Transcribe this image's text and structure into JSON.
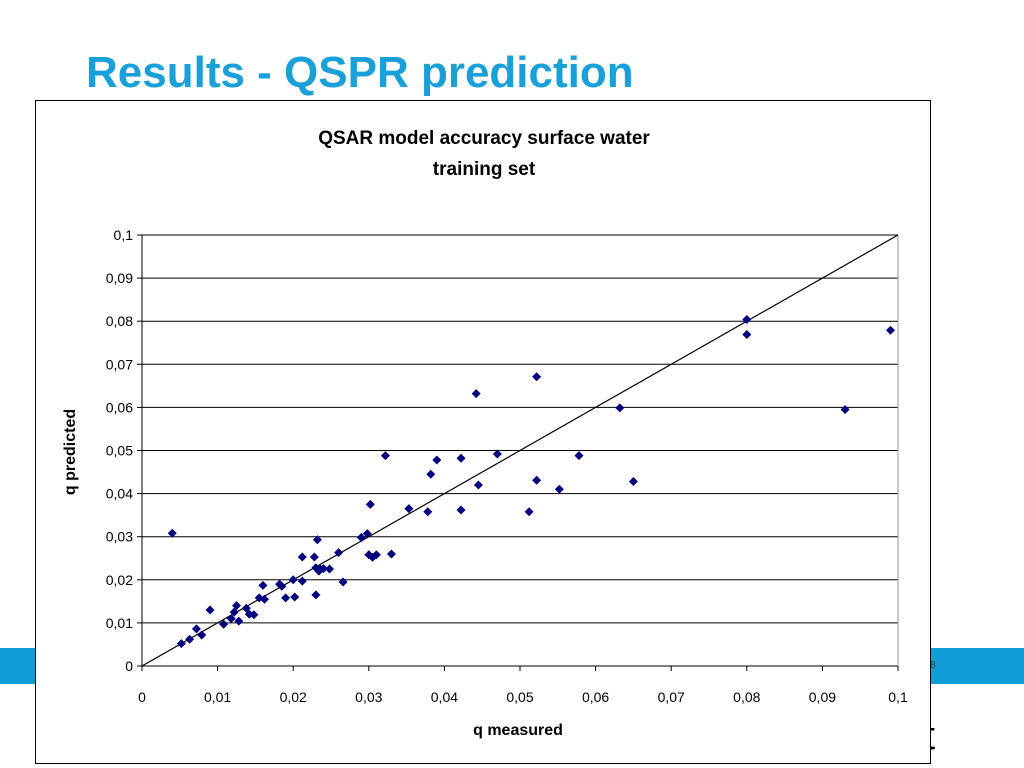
{
  "slide": {
    "title": "Results - QSPR prediction",
    "page_number": "8",
    "accent_color": "#0d9fd6",
    "logo_fragment": "t"
  },
  "chart_data": {
    "type": "scatter",
    "title": "QSAR model accuracy surface water training set",
    "title_lines": [
      "QSAR model accuracy surface water",
      "training set"
    ],
    "xlabel": "q measured",
    "ylabel": "q predicted",
    "xlim": [
      0,
      0.1
    ],
    "ylim": [
      0,
      0.1
    ],
    "x_ticks": [
      "0",
      "0,01",
      "0,02",
      "0,03",
      "0,04",
      "0,05",
      "0,06",
      "0,07",
      "0,08",
      "0,09",
      "0,1"
    ],
    "y_ticks": [
      "0",
      "0,01",
      "0,02",
      "0,03",
      "0,04",
      "0,05",
      "0,06",
      "0,07",
      "0,08",
      "0,09",
      "0,1"
    ],
    "grid": true,
    "reference_line": "y = x",
    "marker_color": "#00007f",
    "series": [
      {
        "x": [
          0.004,
          0.0052,
          0.0063,
          0.0072,
          0.0079,
          0.009,
          0.0108,
          0.0118,
          0.0122,
          0.0125,
          0.0128,
          0.0138,
          0.0142,
          0.0148,
          0.0155,
          0.016,
          0.0162,
          0.0182,
          0.0185,
          0.019,
          0.02,
          0.0202,
          0.0212,
          0.0212,
          0.0228,
          0.023,
          0.023,
          0.0232,
          0.0234,
          0.0236,
          0.024,
          0.0248,
          0.026,
          0.0266,
          0.029,
          0.0298,
          0.03,
          0.0302,
          0.0305,
          0.031,
          0.0322,
          0.033,
          0.0353,
          0.0378,
          0.0382,
          0.039,
          0.0422,
          0.0422,
          0.0442,
          0.0445,
          0.047,
          0.0512,
          0.0522,
          0.0522,
          0.0552,
          0.0578,
          0.0632,
          0.065,
          0.08,
          0.08,
          0.093,
          0.099
        ],
        "y": [
          0.0308,
          0.0052,
          0.0062,
          0.0086,
          0.0072,
          0.013,
          0.0097,
          0.011,
          0.0125,
          0.014,
          0.0104,
          0.0134,
          0.012,
          0.0119,
          0.0158,
          0.0187,
          0.0155,
          0.019,
          0.0185,
          0.0158,
          0.02,
          0.016,
          0.0253,
          0.0197,
          0.0253,
          0.0228,
          0.0165,
          0.0293,
          0.022,
          0.0225,
          0.0226,
          0.0225,
          0.0263,
          0.0195,
          0.0298,
          0.0307,
          0.0258,
          0.0375,
          0.0252,
          0.0258,
          0.0488,
          0.026,
          0.0365,
          0.0358,
          0.0445,
          0.0478,
          0.0482,
          0.0362,
          0.0632,
          0.042,
          0.0492,
          0.0358,
          0.0671,
          0.0431,
          0.041,
          0.0488,
          0.0599,
          0.0428,
          0.0804,
          0.0769,
          0.0595,
          0.0779
        ]
      }
    ]
  }
}
